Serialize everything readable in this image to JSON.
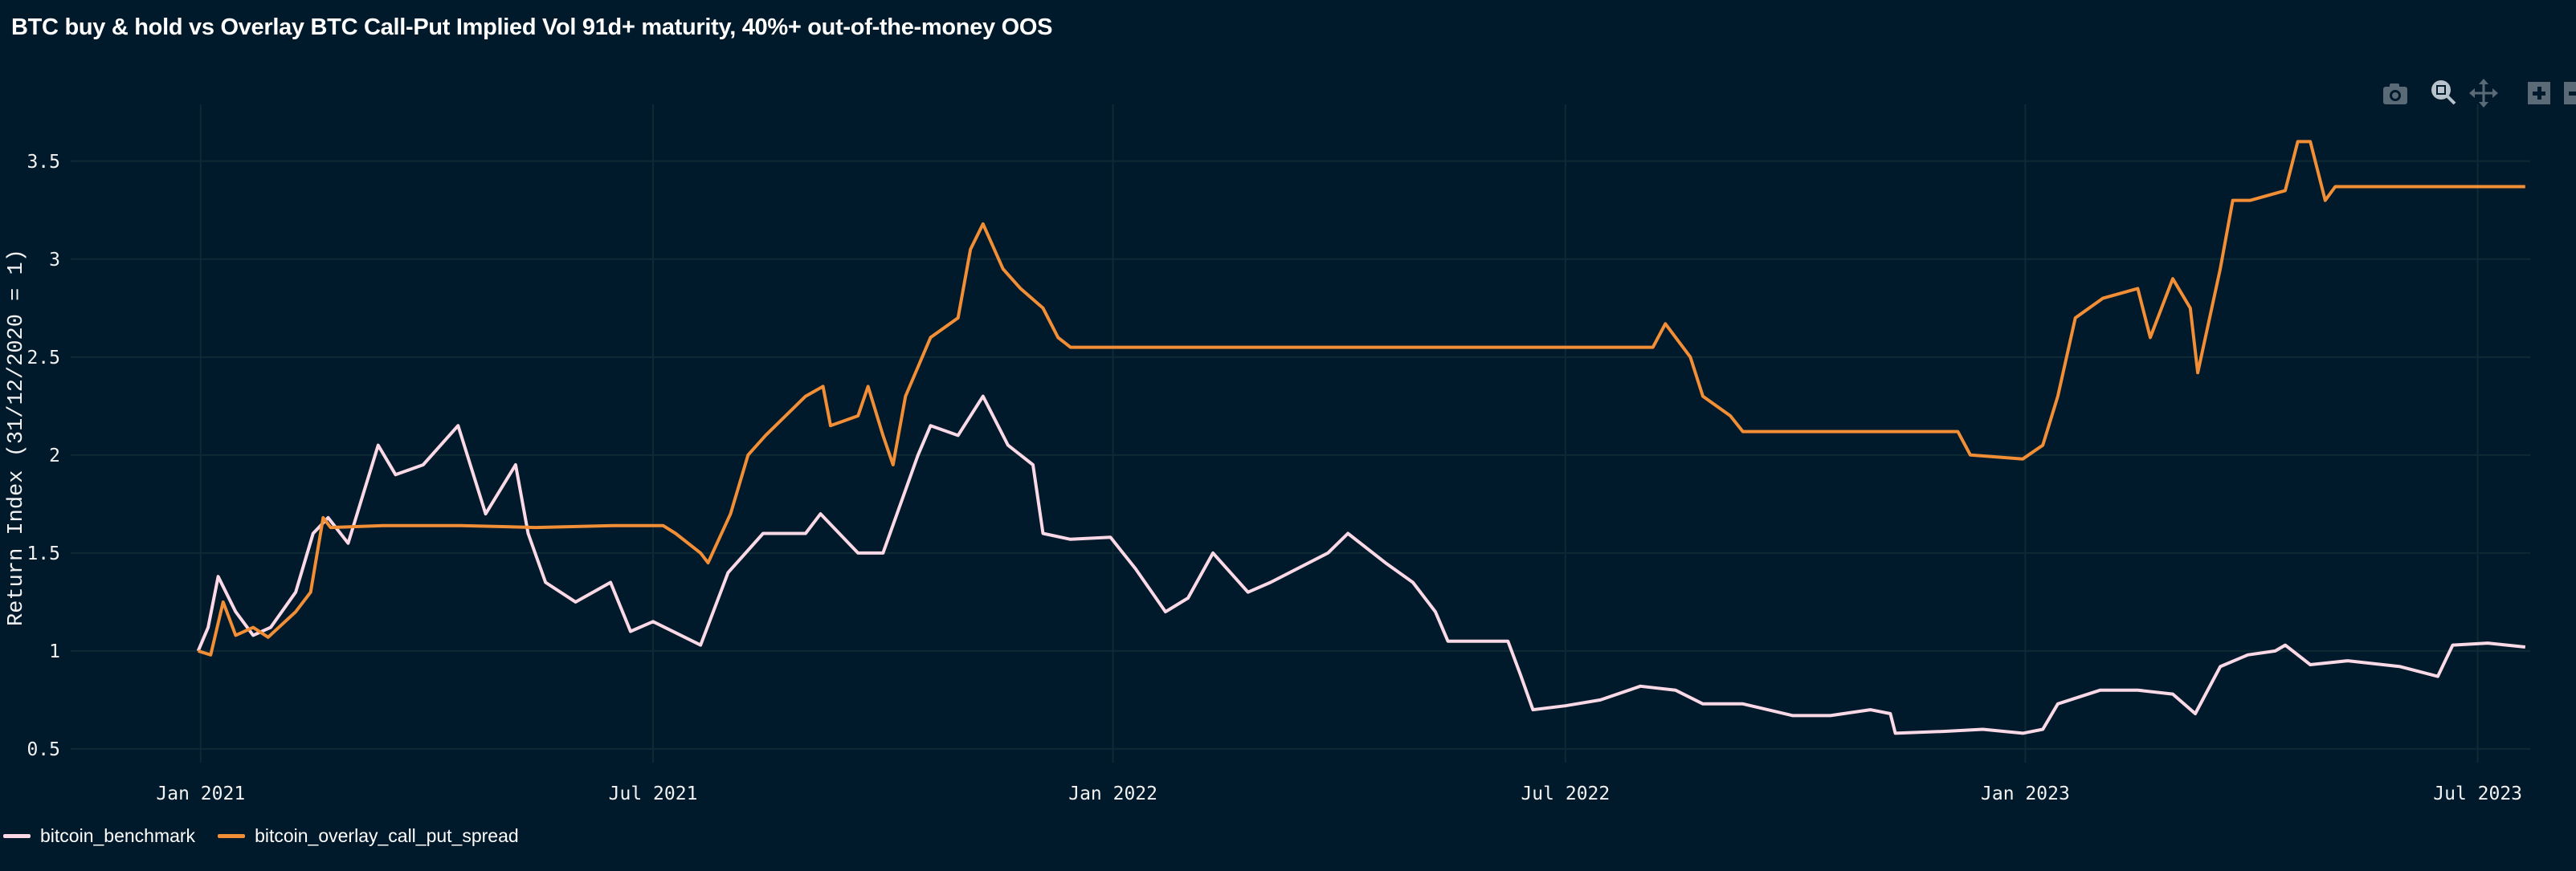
{
  "chart_data": {
    "type": "line",
    "title": "BTC buy & hold vs Overlay BTC Call-Put Implied Vol 91d+ maturity, 40%+ out-of-the-money OOS",
    "xlabel": "",
    "ylabel": "Return Index (31/12/2020 = 1)",
    "ylim": [
      0.43,
      3.79
    ],
    "xlim": [
      "2020-11-10",
      "2023-07-22"
    ],
    "grid": true,
    "legend_position": "bottom-left",
    "y_ticks": [
      0.5,
      1,
      1.5,
      2,
      2.5,
      3,
      3.5
    ],
    "y_tick_labels": [
      "0.5",
      "1",
      "1.5",
      "2",
      "2.5",
      "3",
      "3.5"
    ],
    "x_ticks": [
      "2021-01-01",
      "2021-07-01",
      "2022-01-01",
      "2022-07-01",
      "2023-01-01",
      "2023-07-01"
    ],
    "x_tick_labels": [
      "Jan 2021",
      "Jul 2021",
      "Jan 2022",
      "Jul 2022",
      "Jan 2023",
      "Jul 2023"
    ],
    "series": [
      {
        "name": "bitcoin_benchmark",
        "color": "#fcd9e6",
        "points": [
          [
            "2020-12-31",
            1.0
          ],
          [
            "2021-01-04",
            1.12
          ],
          [
            "2021-01-08",
            1.38
          ],
          [
            "2021-01-15",
            1.2
          ],
          [
            "2021-01-22",
            1.08
          ],
          [
            "2021-01-29",
            1.12
          ],
          [
            "2021-02-08",
            1.3
          ],
          [
            "2021-02-15",
            1.6
          ],
          [
            "2021-02-21",
            1.68
          ],
          [
            "2021-03-01",
            1.55
          ],
          [
            "2021-03-13",
            2.05
          ],
          [
            "2021-03-20",
            1.9
          ],
          [
            "2021-03-31",
            1.95
          ],
          [
            "2021-04-14",
            2.15
          ],
          [
            "2021-04-25",
            1.7
          ],
          [
            "2021-05-07",
            1.95
          ],
          [
            "2021-05-12",
            1.6
          ],
          [
            "2021-05-19",
            1.35
          ],
          [
            "2021-05-31",
            1.25
          ],
          [
            "2021-06-14",
            1.35
          ],
          [
            "2021-06-22",
            1.1
          ],
          [
            "2021-07-01",
            1.15
          ],
          [
            "2021-07-20",
            1.03
          ],
          [
            "2021-07-31",
            1.4
          ],
          [
            "2021-08-14",
            1.6
          ],
          [
            "2021-08-31",
            1.6
          ],
          [
            "2021-09-06",
            1.7
          ],
          [
            "2021-09-21",
            1.5
          ],
          [
            "2021-10-01",
            1.5
          ],
          [
            "2021-10-15",
            2.0
          ],
          [
            "2021-10-20",
            2.15
          ],
          [
            "2021-10-31",
            2.1
          ],
          [
            "2021-11-10",
            2.3
          ],
          [
            "2021-11-20",
            2.05
          ],
          [
            "2021-11-30",
            1.95
          ],
          [
            "2021-12-04",
            1.6
          ],
          [
            "2021-12-15",
            1.57
          ],
          [
            "2021-12-31",
            1.58
          ],
          [
            "2022-01-10",
            1.42
          ],
          [
            "2022-01-22",
            1.2
          ],
          [
            "2022-01-31",
            1.27
          ],
          [
            "2022-02-10",
            1.5
          ],
          [
            "2022-02-24",
            1.3
          ],
          [
            "2022-03-05",
            1.35
          ],
          [
            "2022-03-28",
            1.5
          ],
          [
            "2022-04-05",
            1.6
          ],
          [
            "2022-04-20",
            1.45
          ],
          [
            "2022-05-01",
            1.35
          ],
          [
            "2022-05-10",
            1.2
          ],
          [
            "2022-05-15",
            1.05
          ],
          [
            "2022-05-31",
            1.05
          ],
          [
            "2022-06-08",
            1.05
          ],
          [
            "2022-06-13",
            0.88
          ],
          [
            "2022-06-18",
            0.7
          ],
          [
            "2022-07-01",
            0.72
          ],
          [
            "2022-07-15",
            0.75
          ],
          [
            "2022-07-31",
            0.82
          ],
          [
            "2022-08-14",
            0.8
          ],
          [
            "2022-08-25",
            0.73
          ],
          [
            "2022-09-10",
            0.73
          ],
          [
            "2022-09-30",
            0.67
          ],
          [
            "2022-10-15",
            0.67
          ],
          [
            "2022-10-31",
            0.7
          ],
          [
            "2022-11-08",
            0.68
          ],
          [
            "2022-11-10",
            0.58
          ],
          [
            "2022-11-30",
            0.59
          ],
          [
            "2022-12-15",
            0.6
          ],
          [
            "2022-12-31",
            0.58
          ],
          [
            "2023-01-08",
            0.6
          ],
          [
            "2023-01-14",
            0.73
          ],
          [
            "2023-01-31",
            0.8
          ],
          [
            "2023-02-15",
            0.8
          ],
          [
            "2023-03-01",
            0.78
          ],
          [
            "2023-03-10",
            0.68
          ],
          [
            "2023-03-20",
            0.92
          ],
          [
            "2023-03-31",
            0.98
          ],
          [
            "2023-04-11",
            1.0
          ],
          [
            "2023-04-15",
            1.03
          ],
          [
            "2023-04-25",
            0.93
          ],
          [
            "2023-05-10",
            0.95
          ],
          [
            "2023-05-31",
            0.92
          ],
          [
            "2023-06-15",
            0.87
          ],
          [
            "2023-06-21",
            1.03
          ],
          [
            "2023-07-05",
            1.04
          ],
          [
            "2023-07-20",
            1.02
          ]
        ]
      },
      {
        "name": "bitcoin_overlay_call_put_spread",
        "color": "#f28e36",
        "points": [
          [
            "2020-12-31",
            1.0
          ],
          [
            "2021-01-05",
            0.98
          ],
          [
            "2021-01-10",
            1.25
          ],
          [
            "2021-01-15",
            1.08
          ],
          [
            "2021-01-22",
            1.12
          ],
          [
            "2021-01-28",
            1.07
          ],
          [
            "2021-02-08",
            1.2
          ],
          [
            "2021-02-14",
            1.3
          ],
          [
            "2021-02-19",
            1.68
          ],
          [
            "2021-02-22",
            1.63
          ],
          [
            "2021-03-15",
            1.64
          ],
          [
            "2021-04-15",
            1.64
          ],
          [
            "2021-05-15",
            1.63
          ],
          [
            "2021-06-15",
            1.64
          ],
          [
            "2021-07-05",
            1.64
          ],
          [
            "2021-07-10",
            1.6
          ],
          [
            "2021-07-20",
            1.5
          ],
          [
            "2021-07-23",
            1.45
          ],
          [
            "2021-08-01",
            1.7
          ],
          [
            "2021-08-08",
            2.0
          ],
          [
            "2021-08-15",
            2.1
          ],
          [
            "2021-08-31",
            2.3
          ],
          [
            "2021-09-07",
            2.35
          ],
          [
            "2021-09-10",
            2.15
          ],
          [
            "2021-09-21",
            2.2
          ],
          [
            "2021-09-25",
            2.35
          ],
          [
            "2021-10-01",
            2.1
          ],
          [
            "2021-10-05",
            1.95
          ],
          [
            "2021-10-10",
            2.3
          ],
          [
            "2021-10-20",
            2.6
          ],
          [
            "2021-10-31",
            2.7
          ],
          [
            "2021-11-05",
            3.05
          ],
          [
            "2021-11-10",
            3.18
          ],
          [
            "2021-11-18",
            2.95
          ],
          [
            "2021-11-25",
            2.85
          ],
          [
            "2021-12-04",
            2.75
          ],
          [
            "2021-12-10",
            2.6
          ],
          [
            "2021-12-15",
            2.55
          ],
          [
            "2022-03-01",
            2.55
          ],
          [
            "2022-06-01",
            2.55
          ],
          [
            "2022-08-05",
            2.55
          ],
          [
            "2022-08-10",
            2.67
          ],
          [
            "2022-08-20",
            2.5
          ],
          [
            "2022-08-25",
            2.3
          ],
          [
            "2022-09-05",
            2.2
          ],
          [
            "2022-09-10",
            2.12
          ],
          [
            "2022-12-05",
            2.12
          ],
          [
            "2022-12-10",
            2.0
          ],
          [
            "2022-12-31",
            1.98
          ],
          [
            "2023-01-08",
            2.05
          ],
          [
            "2023-01-14",
            2.3
          ],
          [
            "2023-01-21",
            2.7
          ],
          [
            "2023-02-01",
            2.8
          ],
          [
            "2023-02-15",
            2.85
          ],
          [
            "2023-02-20",
            2.6
          ],
          [
            "2023-03-01",
            2.9
          ],
          [
            "2023-03-08",
            2.75
          ],
          [
            "2023-03-11",
            2.42
          ],
          [
            "2023-03-20",
            2.95
          ],
          [
            "2023-03-25",
            3.3
          ],
          [
            "2023-04-01",
            3.3
          ],
          [
            "2023-04-15",
            3.35
          ],
          [
            "2023-04-20",
            3.6
          ],
          [
            "2023-04-25",
            3.6
          ],
          [
            "2023-05-01",
            3.3
          ],
          [
            "2023-05-05",
            3.37
          ],
          [
            "2023-07-20",
            3.37
          ]
        ]
      }
    ]
  },
  "toolbar": {
    "icons": [
      "camera-icon",
      "zoom-icon",
      "pan-icon",
      "zoom-in-icon",
      "zoom-out-icon"
    ]
  },
  "colors": {
    "background": "#011a2b",
    "grid": "#0e2a35"
  }
}
